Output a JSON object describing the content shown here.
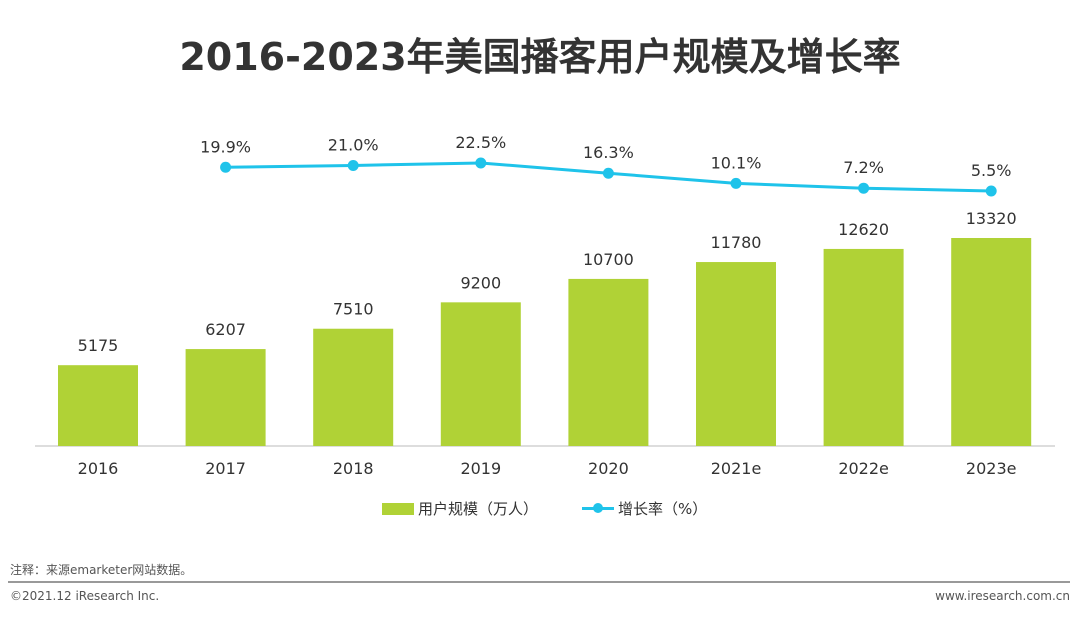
{
  "chart_data": {
    "type": "bar",
    "title": "2016-2023年美国播客用户规模及增长率",
    "categories": [
      "2016",
      "2017",
      "2018",
      "2019",
      "2020",
      "2021e",
      "2022e",
      "2023e"
    ],
    "series": [
      {
        "name": "用户规模（万人）",
        "type": "bar",
        "color": "#b0d236",
        "values": [
          5175,
          6207,
          7510,
          9200,
          10700,
          11780,
          12620,
          13320
        ]
      },
      {
        "name": "增长率（%）",
        "type": "line",
        "color": "#1fc3ea",
        "values": [
          null,
          19.9,
          21.0,
          22.5,
          16.3,
          10.1,
          7.2,
          5.5
        ],
        "labels": [
          "",
          "19.9%",
          "21.0%",
          "22.5%",
          "16.3%",
          "10.1%",
          "7.2%",
          "5.5%"
        ]
      }
    ],
    "legend_position": "bottom",
    "grid": false
  },
  "footer": {
    "note": "注释：来源emarketer网站数据。",
    "copyright": "©2021.12 iResearch Inc.",
    "website": "www.iresearch.com.cn"
  }
}
